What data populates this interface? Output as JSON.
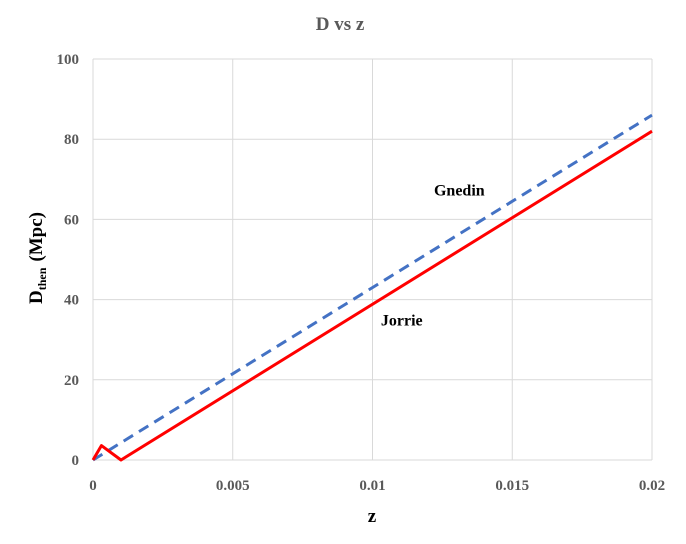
{
  "chart_data": {
    "type": "line",
    "title": "D vs z",
    "xlabel": "z",
    "ylabel_main": "D",
    "ylabel_sub": "then",
    "ylabel_rest": "(Mpc)",
    "xlim": [
      0,
      0.02
    ],
    "ylim": [
      0,
      100
    ],
    "xticks": [
      0,
      0.005,
      0.01,
      0.015,
      0.02
    ],
    "xtick_labels": [
      "0",
      "0.005",
      "0.01",
      "0.015",
      "0.02"
    ],
    "yticks": [
      0,
      20,
      40,
      60,
      80,
      100
    ],
    "ytick_labels": [
      "0",
      "20",
      "40",
      "60",
      "80",
      "100"
    ],
    "grid": true,
    "series": [
      {
        "name": "Gnedin",
        "color": "#4472c4",
        "dash": true,
        "x": [
          0,
          0.02
        ],
        "y": [
          0,
          86
        ]
      },
      {
        "name": "Jorrie",
        "color": "#ff0000",
        "dash": false,
        "x": [
          0,
          0.0003,
          0.001,
          0.02
        ],
        "y": [
          0,
          3.6,
          0,
          82
        ]
      }
    ],
    "annotations": [
      {
        "text": "Gnedin",
        "x": 0.0122,
        "y": 66,
        "series": 0
      },
      {
        "text": "Jorrie",
        "x": 0.0103,
        "y": 33.5,
        "series": 1
      }
    ]
  }
}
